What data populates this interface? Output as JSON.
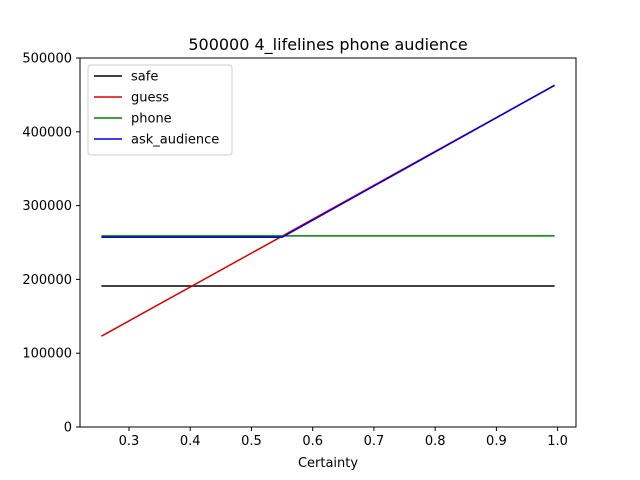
{
  "chart_data": {
    "type": "line",
    "title": "500000 4_lifelines phone audience",
    "xlabel": "Certainty",
    "ylabel": "",
    "xlim": [
      0.22,
      1.03
    ],
    "ylim": [
      0,
      500000
    ],
    "xticks": [
      0.3,
      0.4,
      0.5,
      0.6,
      0.7,
      0.8,
      0.9,
      1.0
    ],
    "xtick_labels": [
      "0.3",
      "0.4",
      "0.5",
      "0.6",
      "0.7",
      "0.8",
      "0.9",
      "1.0"
    ],
    "yticks": [
      0,
      100000,
      200000,
      300000,
      400000,
      500000
    ],
    "ytick_labels": [
      "0",
      "100000",
      "200000",
      "300000",
      "400000",
      "500000"
    ],
    "grid": false,
    "legend_position": "top-left",
    "series": [
      {
        "name": "safe",
        "color": "#000000",
        "x": [
          0.255,
          0.995
        ],
        "y": [
          191000,
          191000
        ]
      },
      {
        "name": "guess",
        "color": "#e00000",
        "x": [
          0.255,
          0.995
        ],
        "y": [
          123000,
          463000
        ]
      },
      {
        "name": "phone",
        "color": "#008000",
        "x": [
          0.255,
          0.995
        ],
        "y": [
          259000,
          259000
        ]
      },
      {
        "name": "ask_audience",
        "color": "#0000e0",
        "x": [
          0.255,
          0.55,
          0.995
        ],
        "y": [
          257000,
          257000,
          463000
        ]
      }
    ]
  }
}
